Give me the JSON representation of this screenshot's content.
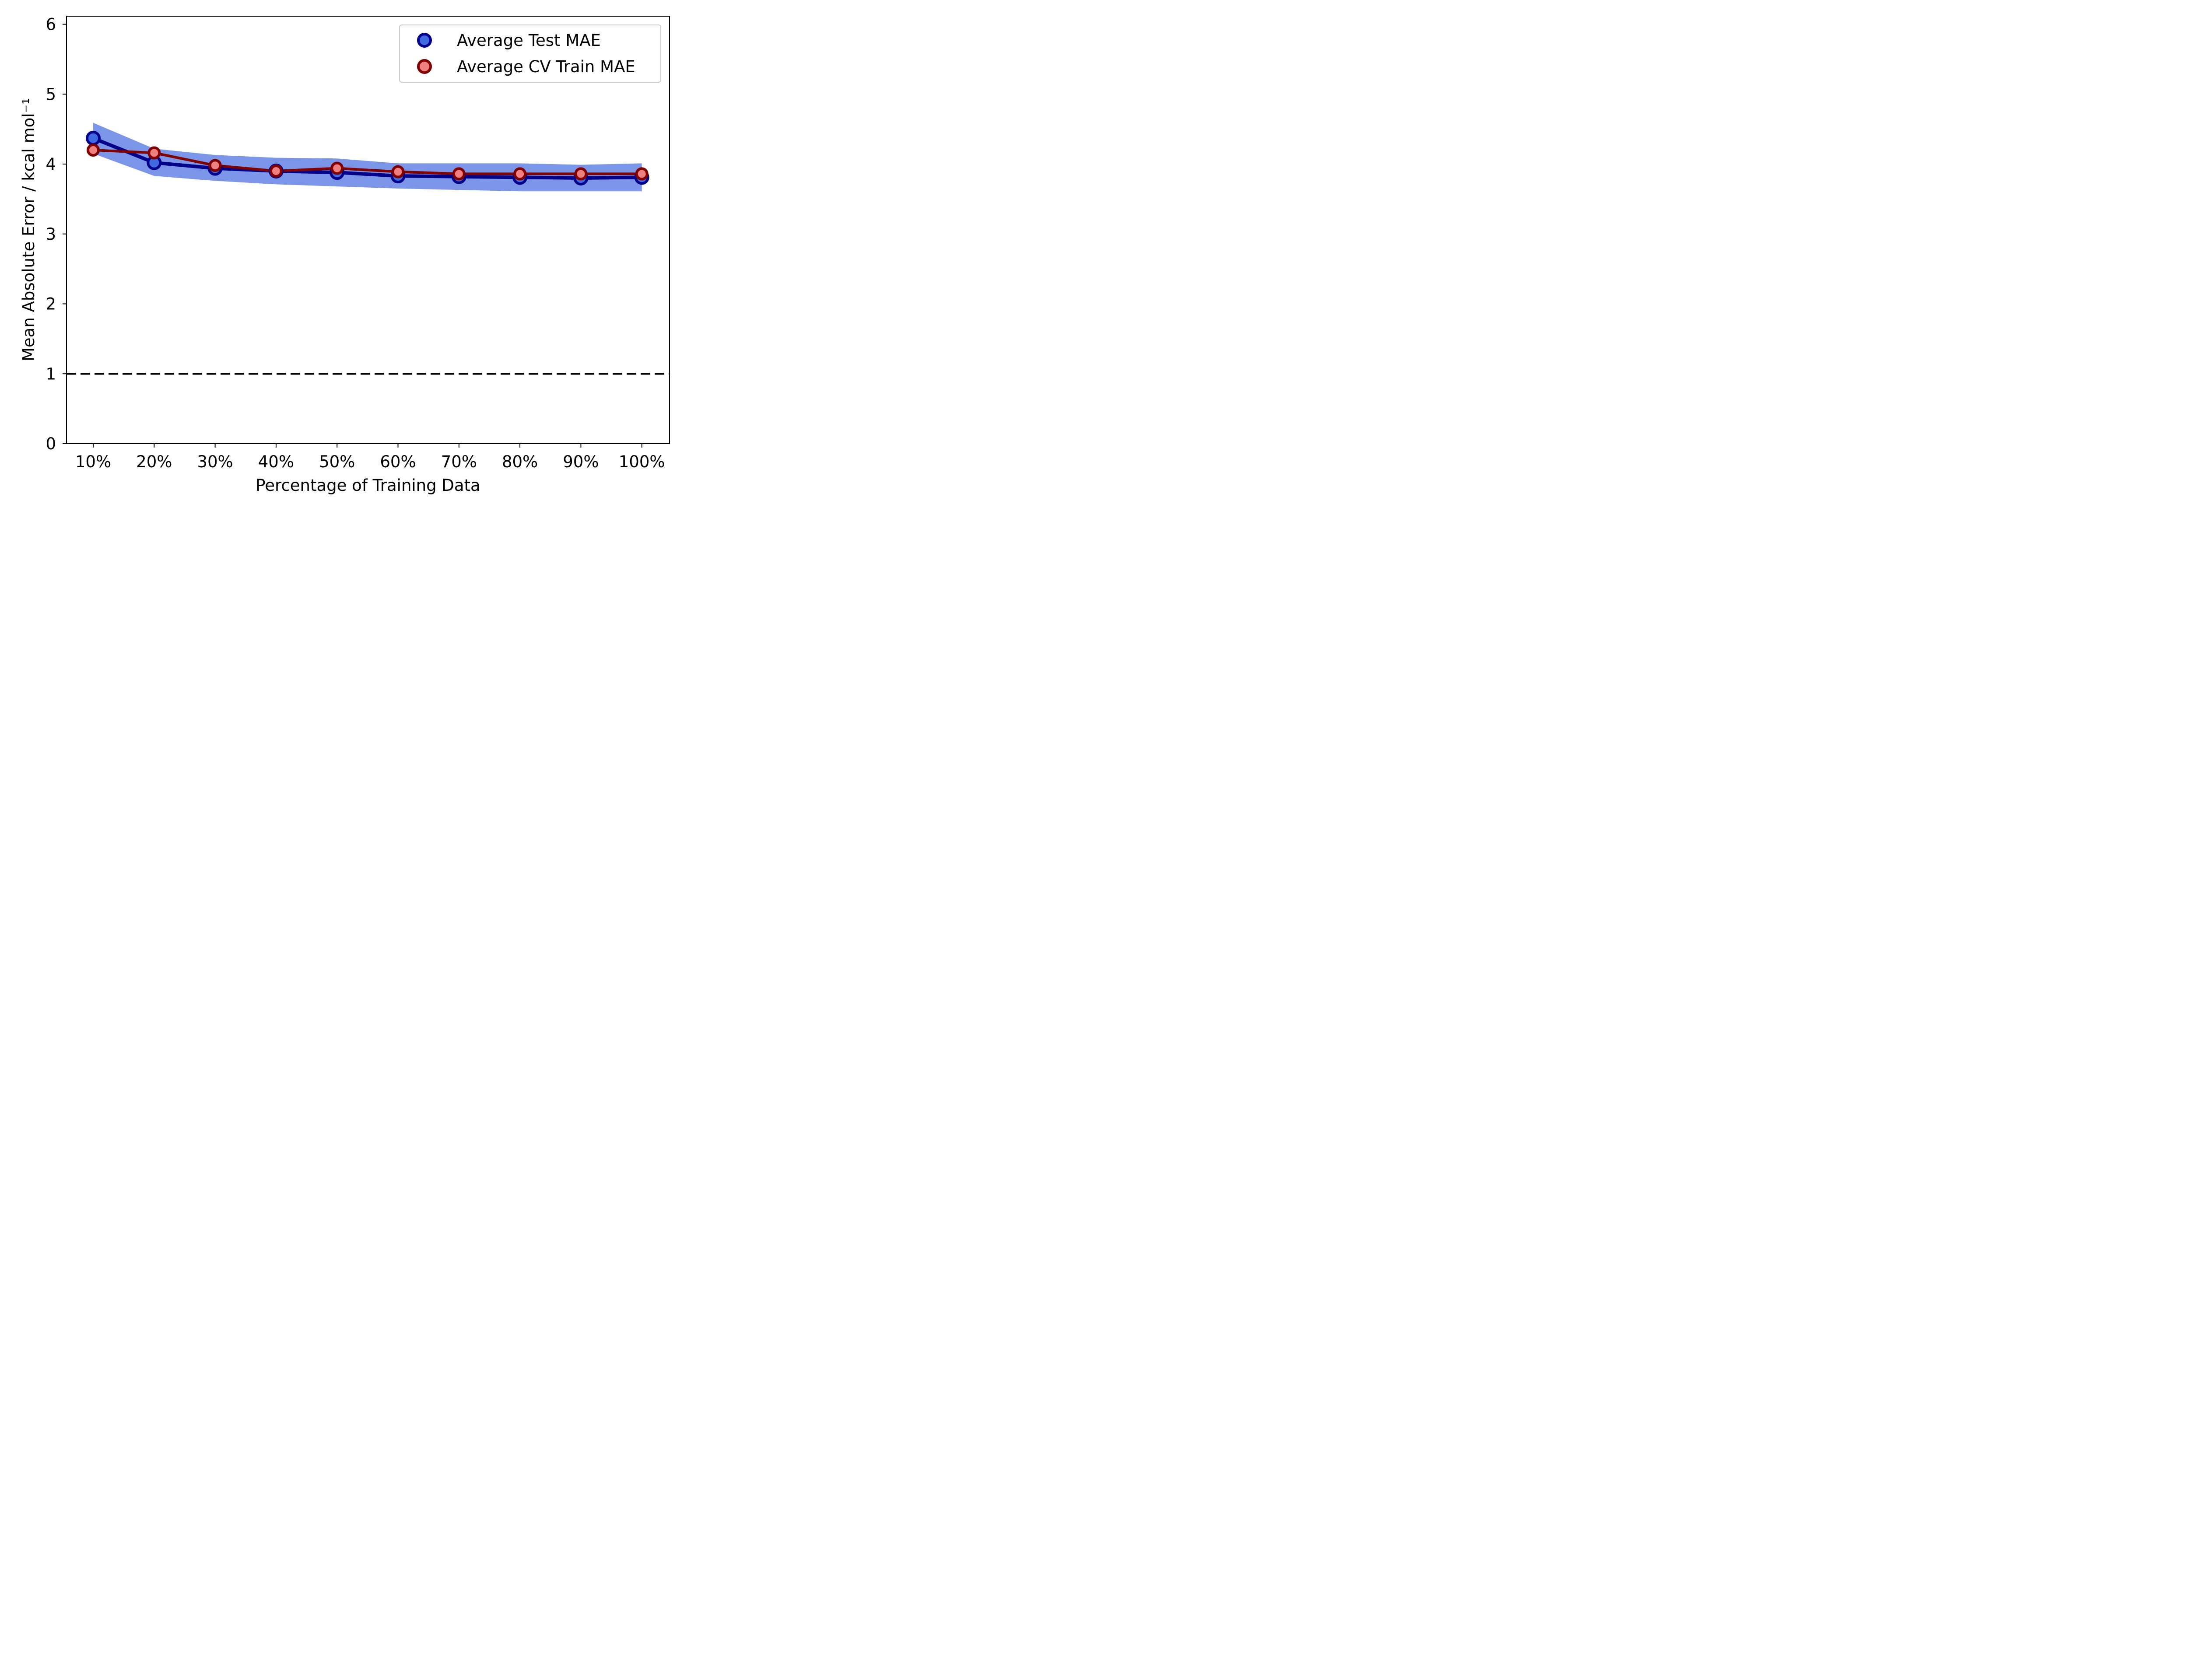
{
  "chart_data": {
    "type": "line",
    "categories": [
      "10%",
      "20%",
      "30%",
      "40%",
      "50%",
      "60%",
      "70%",
      "80%",
      "90%",
      "100%"
    ],
    "xlabel": "Percentage of Training Data",
    "ylabel": "Mean Absolute Error / kcal mol⁻¹",
    "ylim": [
      0,
      6.1
    ],
    "yticks": [
      "0",
      "1",
      "2",
      "3",
      "4",
      "5",
      "6"
    ],
    "reference_line": {
      "y": 1,
      "style": "dashed",
      "color": "#000000"
    },
    "legend_position": "top-right",
    "grid": false,
    "series": [
      {
        "name": "Average Test MAE",
        "values": [
          4.37,
          4.02,
          3.94,
          3.9,
          3.88,
          3.83,
          3.82,
          3.81,
          3.8,
          3.81
        ],
        "band_upper": [
          4.59,
          4.22,
          4.13,
          4.09,
          4.08,
          4.01,
          4.01,
          4.01,
          3.99,
          4.01
        ],
        "band_lower": [
          4.15,
          3.83,
          3.76,
          3.71,
          3.68,
          3.65,
          3.63,
          3.61,
          3.61,
          3.61
        ],
        "line_color": "#00008b",
        "marker_fill": "#4169e1",
        "band_color": "#7b96e8"
      },
      {
        "name": "Average CV Train MAE",
        "values": [
          4.2,
          4.16,
          3.98,
          3.9,
          3.94,
          3.89,
          3.86,
          3.86,
          3.86,
          3.86
        ],
        "line_color": "#800000",
        "marker_fill": "#f08080"
      }
    ]
  }
}
